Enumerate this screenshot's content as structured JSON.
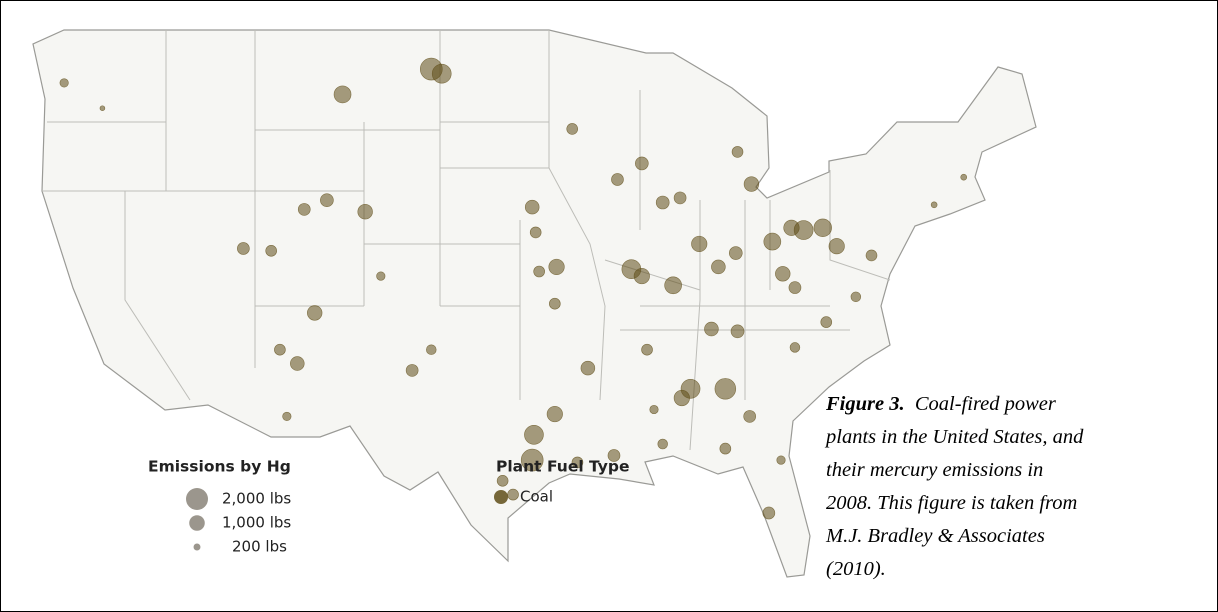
{
  "map": {
    "color": "#5f4d17",
    "plants": [
      {
        "lon": -122.9,
        "lat": 46.7,
        "lbs": 300
      },
      {
        "lon": -120.7,
        "lat": 45.6,
        "lbs": 100
      },
      {
        "lon": -106.9,
        "lat": 46.2,
        "lbs": 1200
      },
      {
        "lon": -101.8,
        "lat": 47.3,
        "lbs": 2000
      },
      {
        "lon": -101.2,
        "lat": 47.1,
        "lbs": 1500
      },
      {
        "lon": -107.8,
        "lat": 41.6,
        "lbs": 700
      },
      {
        "lon": -105.6,
        "lat": 41.1,
        "lbs": 900
      },
      {
        "lon": -109.1,
        "lat": 41.2,
        "lbs": 600
      },
      {
        "lon": -112.6,
        "lat": 39.5,
        "lbs": 600
      },
      {
        "lon": -111.0,
        "lat": 39.4,
        "lbs": 500
      },
      {
        "lon": -108.5,
        "lat": 36.7,
        "lbs": 900
      },
      {
        "lon": -109.5,
        "lat": 34.5,
        "lbs": 800
      },
      {
        "lon": -110.5,
        "lat": 35.1,
        "lbs": 500
      },
      {
        "lon": -110.1,
        "lat": 32.2,
        "lbs": 300
      },
      {
        "lon": -104.7,
        "lat": 38.3,
        "lbs": 300
      },
      {
        "lon": -102.9,
        "lat": 34.2,
        "lbs": 600
      },
      {
        "lon": -101.8,
        "lat": 35.1,
        "lbs": 400
      },
      {
        "lon": -96.0,
        "lat": 41.3,
        "lbs": 800
      },
      {
        "lon": -95.8,
        "lat": 40.2,
        "lbs": 500
      },
      {
        "lon": -95.6,
        "lat": 38.5,
        "lbs": 500
      },
      {
        "lon": -94.6,
        "lat": 38.7,
        "lbs": 1000
      },
      {
        "lon": -94.7,
        "lat": 37.1,
        "lbs": 500
      },
      {
        "lon": -96.0,
        "lat": 30.3,
        "lbs": 2000
      },
      {
        "lon": -95.9,
        "lat": 31.4,
        "lbs": 1500
      },
      {
        "lon": -94.7,
        "lat": 32.3,
        "lbs": 1000
      },
      {
        "lon": -97.7,
        "lat": 29.4,
        "lbs": 500
      },
      {
        "lon": -97.1,
        "lat": 28.8,
        "lbs": 500
      },
      {
        "lon": -93.4,
        "lat": 30.2,
        "lbs": 500
      },
      {
        "lon": -91.3,
        "lat": 30.5,
        "lbs": 600
      },
      {
        "lon": -92.8,
        "lat": 34.3,
        "lbs": 800
      },
      {
        "lon": -90.3,
        "lat": 38.6,
        "lbs": 1500
      },
      {
        "lon": -89.7,
        "lat": 38.3,
        "lbs": 1000
      },
      {
        "lon": -88.5,
        "lat": 41.5,
        "lbs": 700
      },
      {
        "lon": -87.5,
        "lat": 41.7,
        "lbs": 600
      },
      {
        "lon": -89.7,
        "lat": 43.2,
        "lbs": 700
      },
      {
        "lon": -91.1,
        "lat": 42.5,
        "lbs": 600
      },
      {
        "lon": -93.7,
        "lat": 44.7,
        "lbs": 500
      },
      {
        "lon": -86.4,
        "lat": 39.7,
        "lbs": 1000
      },
      {
        "lon": -87.9,
        "lat": 37.9,
        "lbs": 1200
      },
      {
        "lon": -85.3,
        "lat": 38.7,
        "lbs": 800
      },
      {
        "lon": -84.3,
        "lat": 39.3,
        "lbs": 700
      },
      {
        "lon": -82.2,
        "lat": 39.8,
        "lbs": 1200
      },
      {
        "lon": -81.1,
        "lat": 40.4,
        "lbs": 1000
      },
      {
        "lon": -80.4,
        "lat": 40.3,
        "lbs": 1500
      },
      {
        "lon": -79.3,
        "lat": 40.4,
        "lbs": 1300
      },
      {
        "lon": -78.5,
        "lat": 39.6,
        "lbs": 1000
      },
      {
        "lon": -81.6,
        "lat": 38.4,
        "lbs": 900
      },
      {
        "lon": -80.9,
        "lat": 37.8,
        "lbs": 600
      },
      {
        "lon": -79.1,
        "lat": 36.3,
        "lbs": 500
      },
      {
        "lon": -80.9,
        "lat": 35.2,
        "lbs": 400
      },
      {
        "lon": -86.9,
        "lat": 33.4,
        "lbs": 1500
      },
      {
        "lon": -87.4,
        "lat": 33.0,
        "lbs": 1000
      },
      {
        "lon": -84.9,
        "lat": 33.4,
        "lbs": 1800
      },
      {
        "lon": -83.5,
        "lat": 32.2,
        "lbs": 600
      },
      {
        "lon": -88.5,
        "lat": 31.0,
        "lbs": 400
      },
      {
        "lon": -84.9,
        "lat": 30.8,
        "lbs": 500
      },
      {
        "lon": -82.4,
        "lat": 28.0,
        "lbs": 600
      },
      {
        "lon": -81.7,
        "lat": 30.3,
        "lbs": 300
      },
      {
        "lon": -77.4,
        "lat": 37.4,
        "lbs": 400
      },
      {
        "lon": -76.5,
        "lat": 39.2,
        "lbs": 500
      },
      {
        "lon": -83.4,
        "lat": 42.3,
        "lbs": 900
      },
      {
        "lon": -84.2,
        "lat": 43.7,
        "lbs": 500
      },
      {
        "lon": -72.9,
        "lat": 41.4,
        "lbs": 150
      },
      {
        "lon": -71.2,
        "lat": 42.6,
        "lbs": 150
      },
      {
        "lon": -85.7,
        "lat": 36.0,
        "lbs": 800
      },
      {
        "lon": -84.2,
        "lat": 35.9,
        "lbs": 700
      },
      {
        "lon": -89.4,
        "lat": 35.1,
        "lbs": 500
      },
      {
        "lon": -89.0,
        "lat": 32.5,
        "lbs": 300
      }
    ]
  },
  "legend": {
    "size_title": "Emissions by Hg",
    "size_color": "#9b968d",
    "sizes": [
      {
        "value": 2000,
        "label": "2,000 lbs"
      },
      {
        "value": 1000,
        "label": "1,000 lbs"
      },
      {
        "value": 200,
        "label": "200 lbs"
      }
    ],
    "fuel_title": "Plant Fuel Type",
    "fuels": [
      "Coal"
    ]
  },
  "caption": {
    "label": "Figure 3.",
    "lines": [
      "Coal-fired power",
      "plants in the United States, and",
      "their mercury emissions in",
      "2008.  This figure is taken from",
      "M.J. Bradley & Associates",
      "(2010)."
    ]
  }
}
